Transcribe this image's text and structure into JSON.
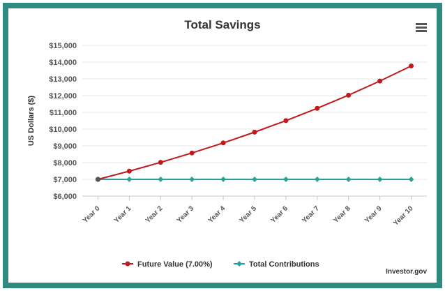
{
  "title": "Total Savings",
  "credit": "Investor.gov",
  "icons": {
    "menu": "hamburger-menu-icon"
  },
  "colors": {
    "frame": "#2f8a80",
    "future_value": "#c0191c",
    "contributions": "#2aa198"
  },
  "chart_data": {
    "type": "line",
    "title": "Total Savings",
    "xlabel": "",
    "ylabel": "US Dollars ($)",
    "categories": [
      "Year 0",
      "Year 1",
      "Year 2",
      "Year 3",
      "Year 4",
      "Year 5",
      "Year 6",
      "Year 7",
      "Year 8",
      "Year 9",
      "Year 10"
    ],
    "ylim": [
      6000,
      15000
    ],
    "yticks": [
      6000,
      7000,
      8000,
      9000,
      10000,
      11000,
      12000,
      13000,
      14000,
      15000
    ],
    "ytick_labels": [
      "$6,000",
      "$7,000",
      "$8,000",
      "$9,000",
      "$10,000",
      "$11,000",
      "$12,000",
      "$13,000",
      "$14,000",
      "$15,000"
    ],
    "grid": true,
    "legend_position": "bottom",
    "series": [
      {
        "name": "Future Value (7.00%)",
        "color": "#c0191c",
        "values": [
          7000,
          7490,
          8014,
          8575,
          9176,
          9818,
          10505,
          11241,
          12027,
          12869,
          13770
        ]
      },
      {
        "name": "Total Contributions",
        "color": "#2aa198",
        "values": [
          7000,
          7000,
          7000,
          7000,
          7000,
          7000,
          7000,
          7000,
          7000,
          7000,
          7000
        ]
      }
    ]
  }
}
